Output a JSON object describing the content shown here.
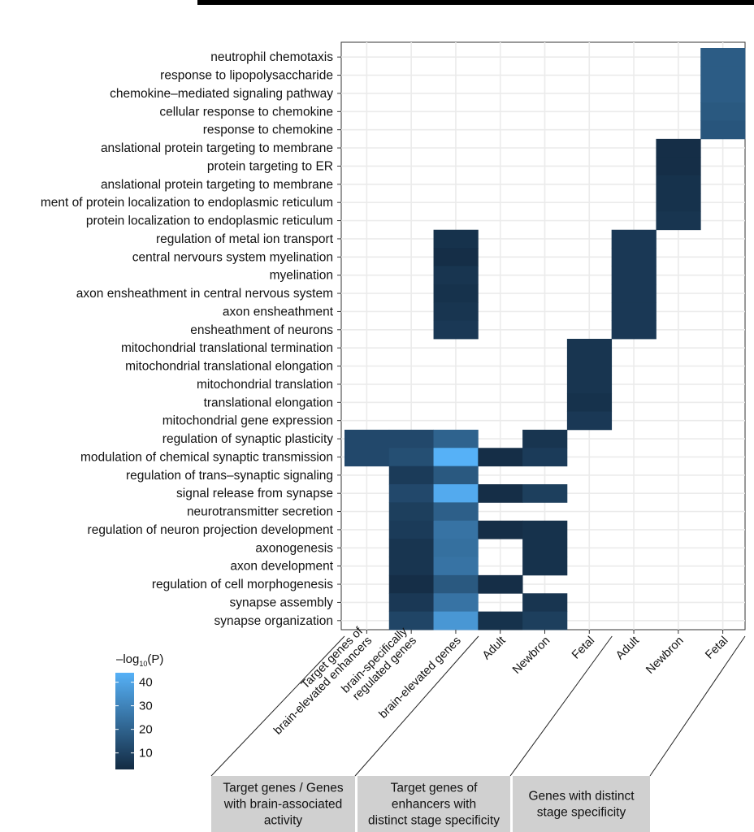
{
  "chart_data": {
    "type": "heatmap",
    "color_scale": {
      "title_prefix": "–log",
      "title_sub": "10",
      "title_suffix": "(P)",
      "ticks": [
        10,
        20,
        30,
        40
      ],
      "range": [
        3,
        44
      ],
      "low_color": "#132b43",
      "high_color": "#56b1f7"
    },
    "rows": [
      "neutrophil chemotaxis",
      "response to lipopolysaccharide",
      "chemokine–mediated signaling pathway",
      "cellular response to chemokine",
      "response to chemokine",
      "anslational protein targeting to membrane",
      "protein targeting to ER",
      "anslational protein targeting to membrane",
      "ment of protein localization to endoplasmic reticulum",
      "protein localization to endoplasmic reticulum",
      "regulation of metal ion transport",
      "central nervours system myelination",
      "myelination",
      "axon ensheathment in central nervous system",
      "axon ensheathment",
      "ensheathment of neurons",
      "mitochondrial translational termination",
      "mitochondrial translational elongation",
      "mitochondrial translation",
      "translational elongation",
      "mitochondrial gene expression",
      "regulation of synaptic plasticity",
      "modulation of chemical synaptic transmission",
      "regulation of trans–synaptic signaling",
      "signal release from synapse",
      "neurotransmitter secretion",
      "regulation of neuron projection development",
      "axonogenesis",
      "axon development",
      "regulation of cell morphogenesis",
      "synapse assembly",
      "synapse organization"
    ],
    "columns": [
      [
        "Target genes of",
        "brain-elevated enhancers"
      ],
      [
        "brain-specifically",
        "regulated genes"
      ],
      [
        "brain-elevated genes"
      ],
      [
        "Adult"
      ],
      [
        "Newbron"
      ],
      [
        "Fetal"
      ],
      [
        "Adult"
      ],
      [
        "Newbron"
      ],
      [
        "Fetal"
      ]
    ],
    "groups": [
      {
        "lines": [
          "Target genes / Genes",
          "with brain-associated",
          "activity"
        ]
      },
      {
        "lines": [
          "Target genes of",
          "enhancers with",
          "distinct stage specificity"
        ]
      },
      {
        "lines": [
          "Genes with distinct",
          "stage specificity"
        ]
      }
    ],
    "values": [
      [
        null,
        null,
        null,
        null,
        null,
        null,
        null,
        null,
        18
      ],
      [
        null,
        null,
        null,
        null,
        null,
        null,
        null,
        null,
        18
      ],
      [
        null,
        null,
        null,
        null,
        null,
        null,
        null,
        null,
        18
      ],
      [
        null,
        null,
        null,
        null,
        null,
        null,
        null,
        null,
        17
      ],
      [
        null,
        null,
        null,
        null,
        null,
        null,
        null,
        null,
        16
      ],
      [
        null,
        null,
        null,
        null,
        null,
        null,
        null,
        4,
        null
      ],
      [
        null,
        null,
        null,
        null,
        null,
        null,
        null,
        4,
        null
      ],
      [
        null,
        null,
        null,
        null,
        null,
        null,
        null,
        5,
        null
      ],
      [
        null,
        null,
        null,
        null,
        null,
        null,
        null,
        5,
        null
      ],
      [
        null,
        null,
        null,
        null,
        null,
        null,
        null,
        6,
        null
      ],
      [
        null,
        null,
        5,
        null,
        null,
        null,
        7,
        null,
        null
      ],
      [
        null,
        null,
        4,
        null,
        null,
        null,
        7,
        null,
        null
      ],
      [
        null,
        null,
        6,
        null,
        null,
        null,
        7,
        null,
        null
      ],
      [
        null,
        null,
        5,
        null,
        null,
        null,
        7,
        null,
        null
      ],
      [
        null,
        null,
        6,
        null,
        null,
        null,
        7,
        null,
        null
      ],
      [
        null,
        null,
        7,
        null,
        null,
        null,
        7,
        null,
        null
      ],
      [
        null,
        null,
        null,
        null,
        null,
        6,
        null,
        null,
        null
      ],
      [
        null,
        null,
        null,
        null,
        null,
        6,
        null,
        null,
        null
      ],
      [
        null,
        null,
        null,
        null,
        null,
        6,
        null,
        null,
        null
      ],
      [
        null,
        null,
        null,
        null,
        null,
        5,
        null,
        null,
        null
      ],
      [
        null,
        null,
        null,
        null,
        null,
        7,
        null,
        null,
        null
      ],
      [
        12,
        12,
        20,
        null,
        6,
        null,
        null,
        null,
        null
      ],
      [
        12,
        14,
        44,
        4,
        8,
        null,
        null,
        null,
        null
      ],
      [
        null,
        8,
        17,
        null,
        null,
        null,
        null,
        null,
        null
      ],
      [
        null,
        12,
        42,
        4,
        9,
        null,
        null,
        null,
        null
      ],
      [
        null,
        9,
        19,
        null,
        null,
        null,
        null,
        null,
        null
      ],
      [
        null,
        8,
        25,
        4,
        5,
        null,
        null,
        null,
        null
      ],
      [
        null,
        6,
        24,
        null,
        5,
        null,
        null,
        null,
        null
      ],
      [
        null,
        6,
        25,
        null,
        5,
        null,
        null,
        null,
        null
      ],
      [
        null,
        4,
        17,
        4,
        null,
        null,
        null,
        null,
        null
      ],
      [
        null,
        7,
        25,
        null,
        6,
        null,
        null,
        null,
        null
      ],
      [
        null,
        11,
        36,
        5,
        9,
        null,
        null,
        null,
        null
      ]
    ]
  }
}
